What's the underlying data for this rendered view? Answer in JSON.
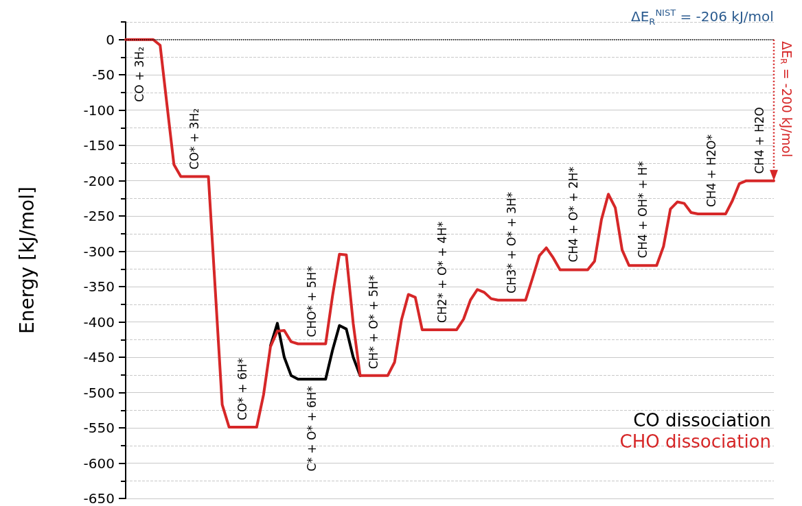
{
  "chart_data": {
    "type": "line",
    "ylabel": "Energy [kJ/mol]",
    "categories": [
      null,
      null,
      null,
      null,
      null,
      null,
      null,
      null,
      null,
      null,
      null,
      null,
      null,
      null,
      null,
      null,
      null,
      null,
      null,
      null,
      null,
      null,
      null,
      null,
      null,
      null,
      null,
      null,
      null,
      null,
      null,
      null,
      null,
      null,
      null,
      null,
      null,
      null,
      null,
      null,
      null,
      null,
      null,
      null,
      null,
      null,
      null,
      null,
      null,
      null,
      null,
      null,
      null,
      null,
      null,
      null,
      null,
      null,
      null,
      null,
      null,
      null,
      null,
      null,
      null,
      null,
      null,
      null,
      null,
      null,
      null,
      null,
      null,
      null,
      null,
      null,
      null,
      null,
      null,
      null,
      null,
      null,
      null,
      null,
      null,
      null,
      null,
      null,
      null,
      null,
      null,
      null,
      null,
      null,
      null
    ],
    "ylim": [
      -650,
      25
    ],
    "yticks": [
      {
        "value": 25,
        "label": null
      },
      0,
      {
        "value": -25,
        "label": null
      },
      -50,
      {
        "value": -75,
        "label": null
      },
      -100,
      {
        "value": -125,
        "label": null
      },
      -150,
      {
        "value": -175,
        "label": null
      },
      -200,
      {
        "value": -225,
        "label": null
      },
      -250,
      {
        "value": -275,
        "label": null
      },
      -300,
      {
        "value": -325,
        "label": null
      },
      -350,
      {
        "value": -375,
        "label": null
      },
      -400,
      {
        "value": -425,
        "label": null
      },
      -450,
      {
        "value": -475,
        "label": null
      },
      -500,
      {
        "value": -525,
        "label": null
      },
      -550,
      {
        "value": -575,
        "label": null
      },
      -600,
      {
        "value": -625,
        "label": null
      },
      -650
    ],
    "tick_labels": "y",
    "grid": "y",
    "legend": "bottom right",
    "series": [
      {
        "name": "CO dissociation",
        "color": "#000000",
        "values": [
          null,
          null,
          null,
          null,
          null,
          null,
          null,
          null,
          null,
          null,
          null,
          null,
          null,
          null,
          null,
          null,
          null,
          null,
          null,
          null,
          null,
          -434,
          -402,
          -450,
          -476,
          -481,
          -481,
          -481,
          -481,
          -481,
          -440,
          -405,
          -410,
          -450,
          -476,
          null,
          null,
          null,
          null,
          null,
          null,
          null,
          null,
          null,
          null,
          null,
          null,
          null,
          null,
          null,
          null,
          null,
          null,
          null,
          null,
          null,
          null,
          null,
          null,
          null,
          null,
          null,
          null,
          null,
          null,
          null,
          null,
          null,
          null,
          null,
          null,
          null,
          null,
          null,
          null,
          null,
          null,
          null,
          null,
          null,
          null,
          null,
          null,
          null,
          null,
          null,
          null,
          null,
          null,
          null,
          null,
          null,
          null,
          null,
          null
        ]
      },
      {
        "name": "CHO dissociation",
        "color": "#d62728",
        "values": [
          0,
          0,
          0,
          0,
          0,
          -8,
          -93,
          -177,
          -194,
          -194,
          -194,
          -194,
          -194,
          -355,
          -517,
          -549,
          -549,
          -549,
          -549,
          -549,
          -503,
          -435,
          -413,
          -412,
          -428,
          -431,
          -431,
          -431,
          -431,
          -431,
          -363,
          -304,
          -305,
          -402,
          -476,
          -476,
          -476,
          -476,
          -476,
          -457,
          -397,
          -361,
          -365,
          -411,
          -411,
          -411,
          -411,
          -411,
          -411,
          -396,
          -369,
          -354,
          -358,
          -367,
          -369,
          -369,
          -369,
          -369,
          -369,
          -338,
          -306,
          -295,
          -309,
          -326,
          -326,
          -326,
          -326,
          -326,
          -314,
          -255,
          -219,
          -238,
          -298,
          -320,
          -320,
          -320,
          -320,
          -320,
          -293,
          -240,
          -230,
          -232,
          -245,
          -247,
          -247,
          -247,
          -247,
          -247,
          -228,
          -204,
          -200,
          -200,
          -200,
          -200,
          -200
        ]
      }
    ],
    "ref_lines": [
      {
        "axis": "y",
        "value": 0,
        "color": "#000000",
        "line_style": "dotted"
      }
    ],
    "annotations": [
      {
        "text": "CO + 3H₂",
        "y": 0
      },
      {
        "text": "CO* + 3H₂",
        "y": -194
      },
      {
        "text": "CO* + 6H*",
        "y": -549
      },
      {
        "text": "C* + O* + 6H*",
        "y": -481
      },
      {
        "text": "CHO* + 5H*",
        "y": -431
      },
      {
        "text": "CH* + O* + 5H*",
        "y": -476
      },
      {
        "text": "CH2* + O* + 4H*",
        "y": -411
      },
      {
        "text": "CH3* + O* + 3H*",
        "y": -369
      },
      {
        "text": "CH4 + O* + 2H*",
        "y": -326
      },
      {
        "text": "CH4 + OH* + H*",
        "y": -320
      },
      {
        "text": "CH4 + H2O*",
        "y": -247
      },
      {
        "text": "CH4 + H2O",
        "y": -200
      },
      "ΔE$_{R}$ = -200 kJ/mol",
      "ΔE$_{R}$$^{NIST}$ = -206 kJ/mol"
    ]
  }
}
